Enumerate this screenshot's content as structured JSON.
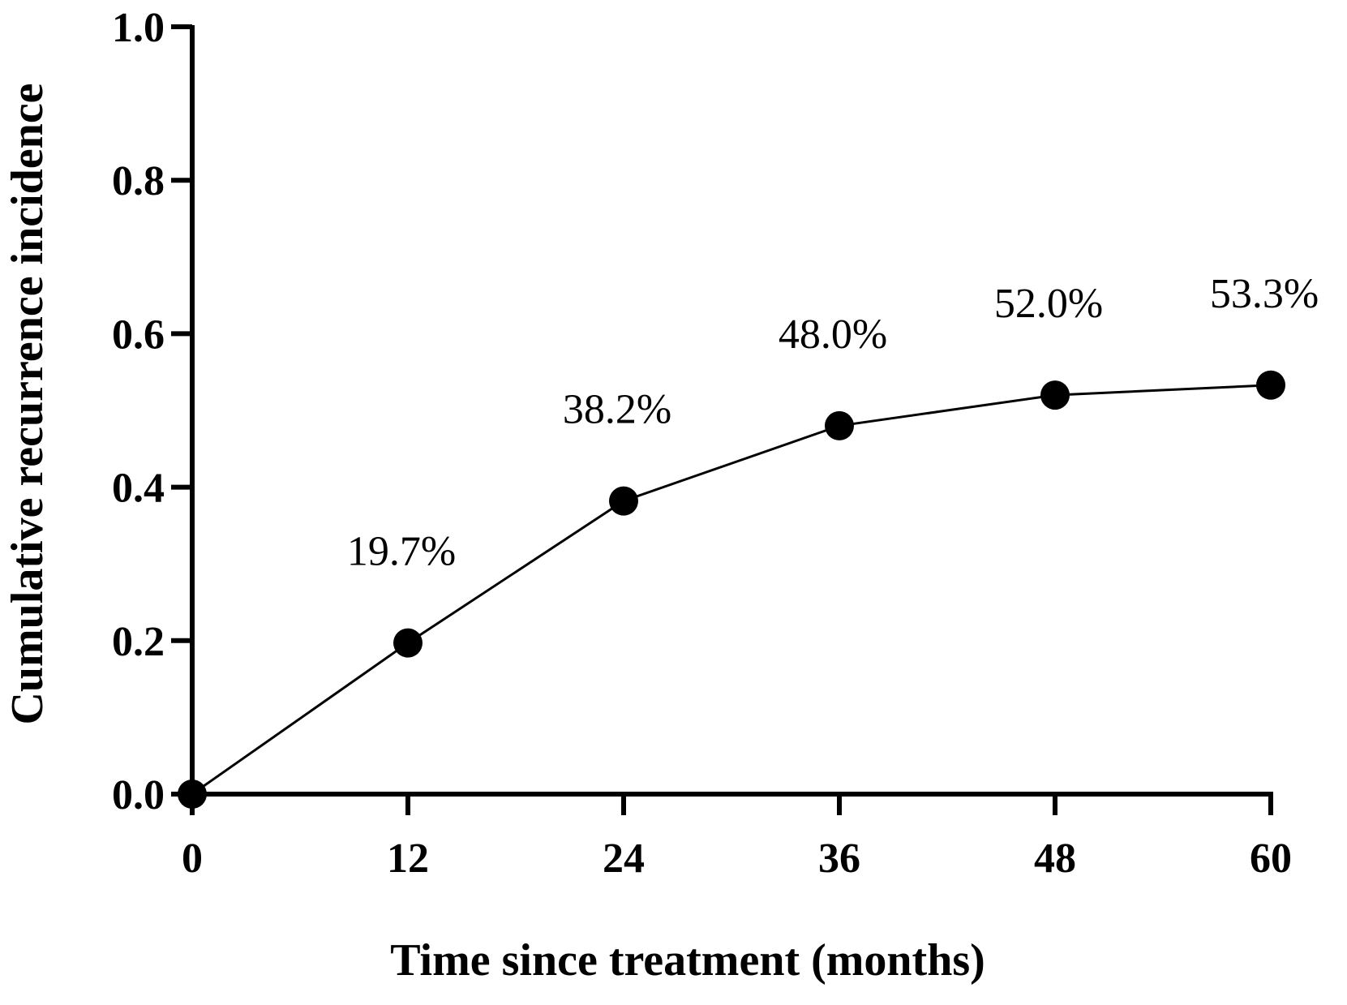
{
  "chart_data": {
    "type": "line",
    "title": "",
    "xlabel": "Time since treatment (months)",
    "ylabel": "Cumulative recurrence incidence",
    "xlim": [
      0,
      60
    ],
    "ylim": [
      0,
      1.0
    ],
    "x_ticks": [
      "0",
      "12",
      "24",
      "36",
      "48",
      "60"
    ],
    "y_ticks": [
      "0.0",
      "0.2",
      "0.4",
      "0.6",
      "0.8",
      "1.0"
    ],
    "grid": false,
    "legend": "none",
    "series": [
      {
        "x": [
          0,
          12,
          24,
          36,
          48,
          60
        ],
        "y": [
          0.0,
          0.197,
          0.382,
          0.48,
          0.52,
          0.533
        ],
        "labels": [
          "",
          "19.7%",
          "38.2%",
          "48.0%",
          "52.0%",
          "53.3%"
        ],
        "color": "#000000"
      }
    ]
  }
}
